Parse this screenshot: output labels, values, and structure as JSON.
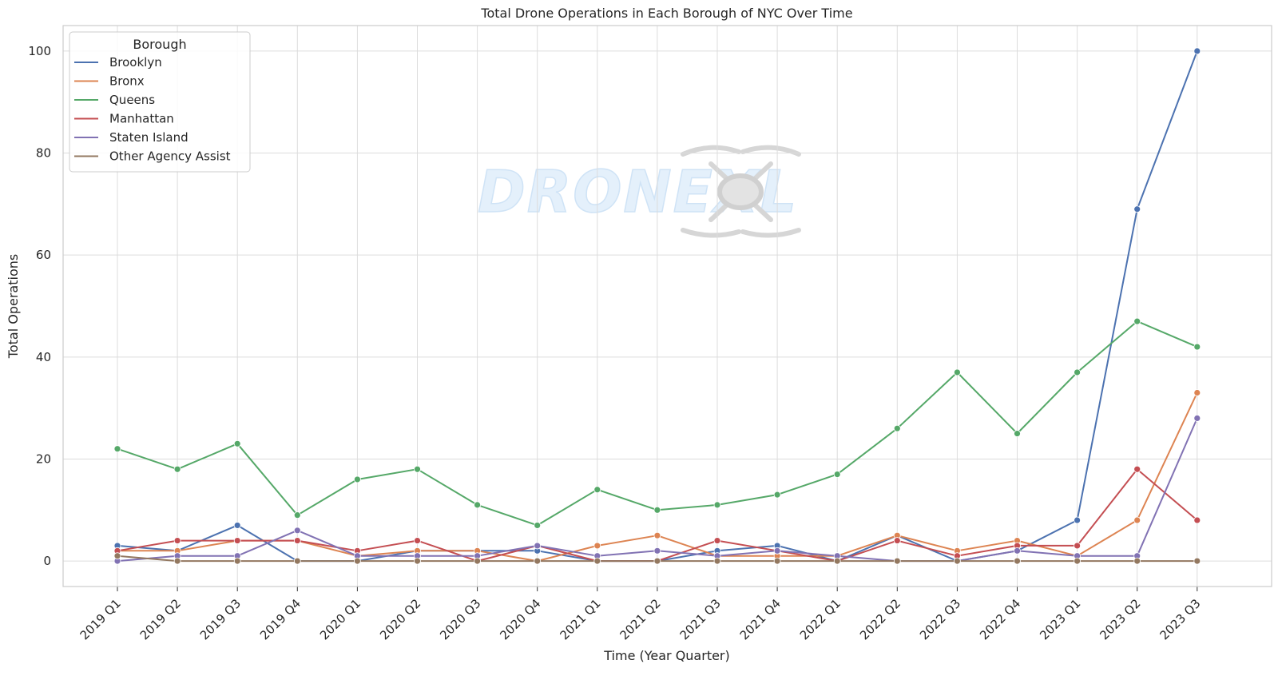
{
  "chart_data": {
    "type": "line",
    "title": "Total Drone Operations in Each Borough of NYC Over Time",
    "xlabel": "Time (Year Quarter)",
    "ylabel": "Total Operations",
    "ylim": [
      -5,
      105
    ],
    "yticks": [
      0,
      20,
      40,
      60,
      80,
      100
    ],
    "grid": true,
    "legend": {
      "title": "Borough",
      "placement": "top-left"
    },
    "categories": [
      "2019 Q1",
      "2019 Q2",
      "2019 Q3",
      "2019 Q4",
      "2020 Q1",
      "2020 Q2",
      "2020 Q3",
      "2020 Q4",
      "2021 Q1",
      "2021 Q2",
      "2021 Q3",
      "2021 Q4",
      "2022 Q1",
      "2022 Q2",
      "2022 Q3",
      "2022 Q4",
      "2023 Q1",
      "2023 Q2",
      "2023 Q3"
    ],
    "series": [
      {
        "name": "Brooklyn",
        "color": "#4c72b0",
        "values": [
          3,
          2,
          7,
          0,
          0,
          2,
          2,
          2,
          0,
          0,
          2,
          3,
          0,
          5,
          0,
          2,
          8,
          69,
          100
        ]
      },
      {
        "name": "Bronx",
        "color": "#dd8452",
        "values": [
          2,
          2,
          4,
          4,
          1,
          2,
          2,
          0,
          3,
          5,
          1,
          1,
          1,
          5,
          2,
          4,
          1,
          8,
          33
        ]
      },
      {
        "name": "Queens",
        "color": "#55a868",
        "values": [
          22,
          18,
          23,
          9,
          16,
          18,
          11,
          7,
          14,
          10,
          11,
          13,
          17,
          26,
          37,
          25,
          37,
          47,
          42
        ]
      },
      {
        "name": "Manhattan",
        "color": "#c44e52",
        "values": [
          2,
          4,
          4,
          4,
          2,
          4,
          0,
          3,
          0,
          0,
          4,
          2,
          0,
          4,
          1,
          3,
          3,
          18,
          8
        ]
      },
      {
        "name": "Staten Island",
        "color": "#8172b3",
        "values": [
          0,
          1,
          1,
          6,
          1,
          1,
          1,
          3,
          1,
          2,
          1,
          2,
          1,
          0,
          0,
          2,
          1,
          1,
          28
        ]
      },
      {
        "name": "Other Agency Assist",
        "color": "#937860",
        "values": [
          1,
          0,
          0,
          0,
          0,
          0,
          0,
          0,
          0,
          0,
          0,
          0,
          0,
          0,
          0,
          0,
          0,
          0,
          0
        ]
      }
    ]
  },
  "watermark": {
    "text": "DRONEXL"
  }
}
